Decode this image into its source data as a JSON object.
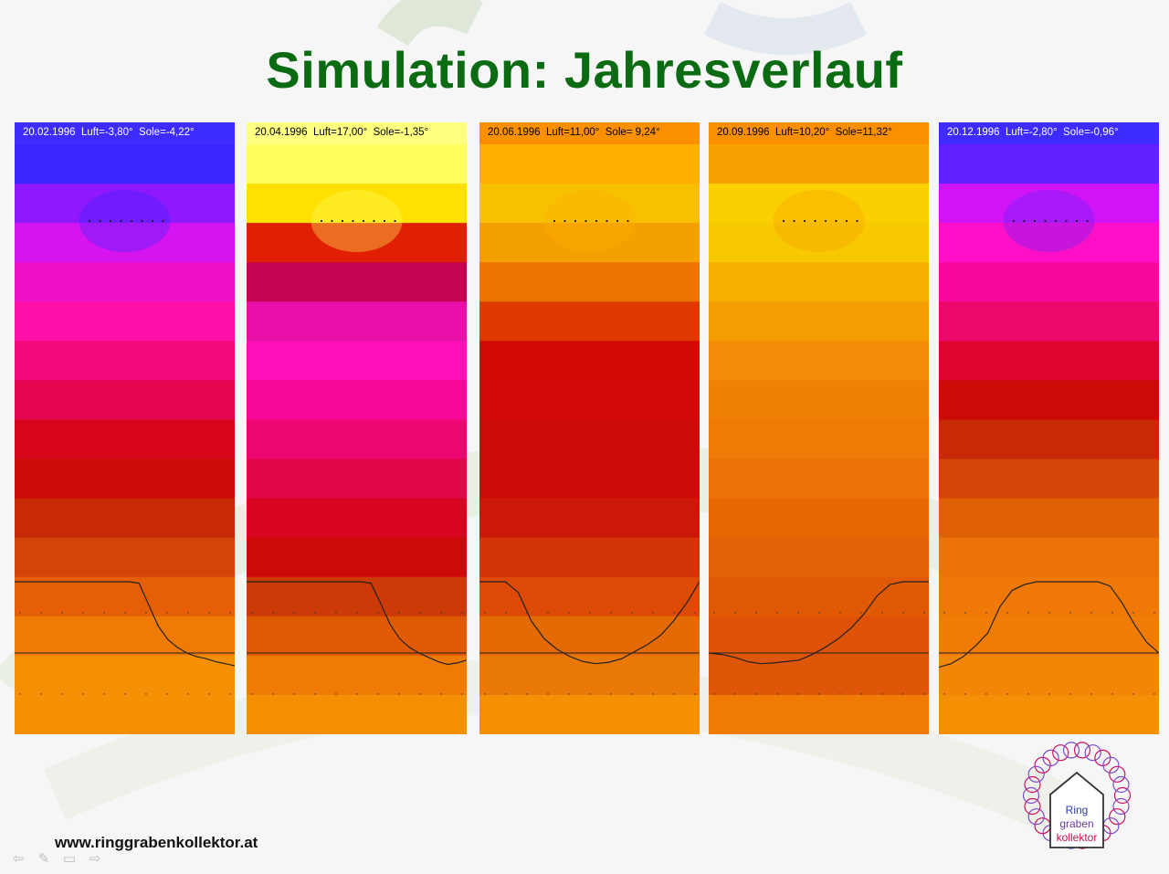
{
  "slide": {
    "title": "Simulation: Jahresverlauf",
    "footer_url": "www.ringgrabenkollektor.at"
  },
  "logo": {
    "line1": "Ring",
    "line2": "graben",
    "line3": "kollektor",
    "colors": {
      "ring": "#d01060",
      "house": "#333333",
      "line1": "#2a3aa0",
      "line2": "#6a3a9a",
      "line3": "#c01050"
    }
  },
  "navigation": {
    "icons": [
      "arrow-left-icon",
      "pen-icon",
      "menu-icon",
      "arrow-right-icon"
    ]
  },
  "panels": [
    {
      "caption": "20.02.1996  Luft=-3,80°  Sole=-4,22°",
      "caption_bg": "#3d2bff",
      "caption_color": "#ffffff",
      "gradient": [
        "#3a24ff",
        "#9018ff",
        "#d614ef",
        "#ee10c8",
        "#ff10a8",
        "#f2087a",
        "#e4064e",
        "#d8061c",
        "#cc0a08",
        "#c82a08",
        "#d24408",
        "#e65e06",
        "#f07a06",
        "#f59004",
        "#f59004"
      ],
      "curve": [
        0.0,
        0.0,
        0.0,
        0.0,
        0.0,
        0.0,
        0.0,
        0.0,
        0.0,
        0.0,
        0.0,
        0.0,
        0.0,
        0.02,
        0.32,
        0.62,
        0.81,
        0.92,
        1.0,
        1.05,
        1.08,
        1.12,
        1.15,
        1.18
      ]
    },
    {
      "caption": "20.04.1996  Luft=17,00°  Sole=-1,35°",
      "caption_bg": "#ffff80",
      "caption_color": "#000000",
      "gradient": [
        "#ffff60",
        "#ffe000",
        "#e02000",
        "#c40450",
        "#e810a8",
        "#ff10b8",
        "#f80898",
        "#ec0870",
        "#e20848",
        "#d80420",
        "#cc0a08",
        "#cc3a08",
        "#e05a06",
        "#f07a06",
        "#f59004"
      ],
      "curve": [
        0.0,
        0.0,
        0.0,
        0.0,
        0.0,
        0.0,
        0.0,
        0.0,
        0.0,
        0.0,
        0.0,
        0.0,
        0.0,
        0.02,
        0.3,
        0.6,
        0.8,
        0.92,
        1.0,
        1.06,
        1.12,
        1.16,
        1.14,
        1.1
      ]
    },
    {
      "caption": "20.06.1996  Luft=11,00°  Sole= 9,24°",
      "caption_bg": "#fa8f00",
      "caption_color": "#000000",
      "gradient": [
        "#ffb000",
        "#f7c000",
        "#f4a000",
        "#ec7400",
        "#de3a02",
        "#d10804",
        "#d00808",
        "#cc0a08",
        "#cc0a08",
        "#cc1808",
        "#d23408",
        "#dc4a06",
        "#e46a06",
        "#ea7806",
        "#f59004"
      ],
      "curve": [
        0.0,
        0.0,
        0.0,
        0.15,
        0.55,
        0.8,
        0.95,
        1.05,
        1.12,
        1.15,
        1.13,
        1.08,
        0.98,
        0.88,
        0.75,
        0.55,
        0.3,
        0.0
      ]
    },
    {
      "caption": "20.09.1996  Luft=10,20°  Sole=11,32°",
      "caption_bg": "#fa8f00",
      "caption_color": "#000000",
      "gradient": [
        "#f7a000",
        "#fad000",
        "#f8c800",
        "#f7b000",
        "#f59e04",
        "#f38c06",
        "#f18006",
        "#ef7a06",
        "#ec7206",
        "#e86806",
        "#e46206",
        "#e05a06",
        "#dd5206",
        "#de5608",
        "#f07a06"
      ],
      "curve": [
        1.0,
        1.02,
        1.06,
        1.12,
        1.15,
        1.14,
        1.12,
        1.1,
        1.02,
        0.92,
        0.8,
        0.65,
        0.45,
        0.2,
        0.04,
        0.0,
        0.0,
        0.0
      ]
    },
    {
      "caption": "20.12.1996  Luft=-2,80°  Sole=-0,96°",
      "caption_bg": "#3d2bff",
      "caption_color": "#ffffff",
      "gradient": [
        "#6020ff",
        "#d014f4",
        "#ff10c8",
        "#f8089c",
        "#ec086c",
        "#de0630",
        "#cc0a08",
        "#c82a08",
        "#d44608",
        "#e06006",
        "#ec7406",
        "#f07806",
        "#f07c06",
        "#f38606",
        "#f59004"
      ],
      "curve": [
        1.2,
        1.15,
        1.05,
        0.9,
        0.72,
        0.35,
        0.12,
        0.04,
        0.0,
        0.0,
        0.0,
        0.0,
        0.0,
        0.0,
        0.06,
        0.3,
        0.6,
        0.85,
        1.0
      ]
    }
  ]
}
